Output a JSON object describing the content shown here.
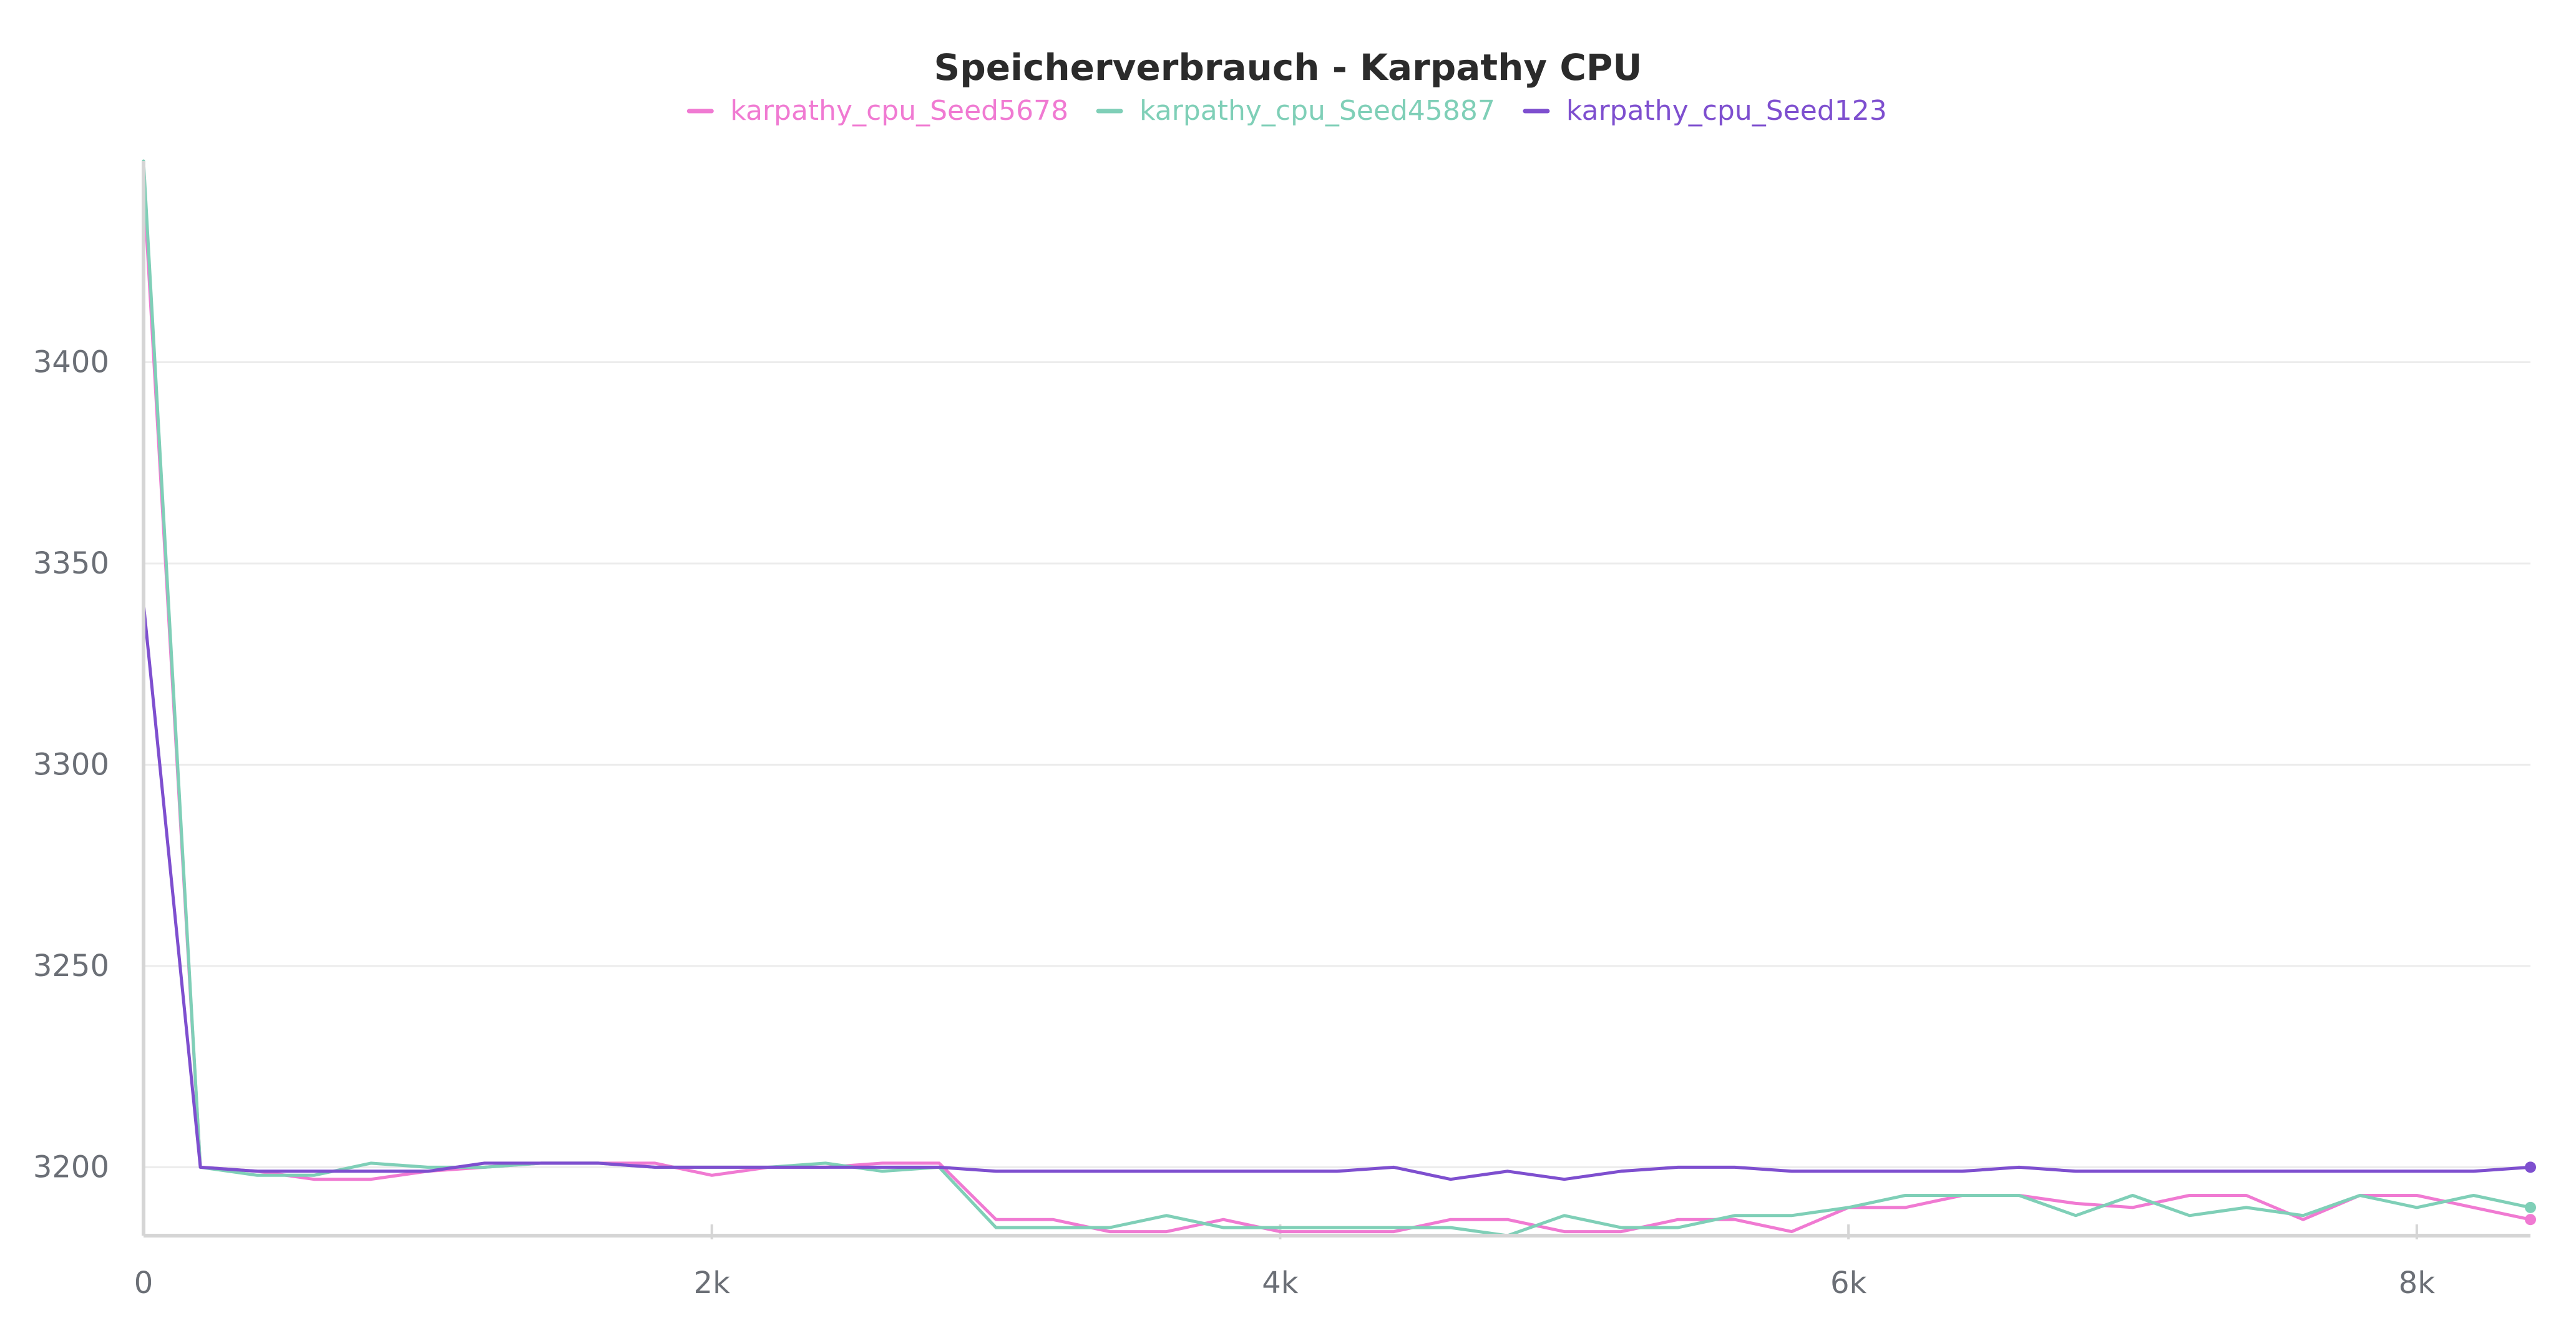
{
  "chart_data": {
    "type": "line",
    "title": "Speicherverbrauch - Karpathy CPU",
    "xlabel": "",
    "ylabel": "",
    "xlim": [
      0,
      8400
    ],
    "ylim": [
      3183,
      3450
    ],
    "xticks": [
      0,
      2000,
      4000,
      6000,
      8000
    ],
    "xtick_labels": [
      "0",
      "2k",
      "4k",
      "6k",
      "8k"
    ],
    "yticks": [
      3200,
      3250,
      3300,
      3350,
      3400
    ],
    "ytick_labels": [
      "3200",
      "3250",
      "3300",
      "3350",
      "3400"
    ],
    "grid": true,
    "legend_position": "top-center",
    "series": [
      {
        "name": "karpathy_cpu_Seed5678",
        "color": "#f07ad2",
        "x": [
          0,
          200,
          400,
          600,
          800,
          1000,
          1200,
          1400,
          1600,
          1800,
          2000,
          2200,
          2400,
          2600,
          2800,
          3000,
          3200,
          3400,
          3600,
          3800,
          4000,
          4200,
          4400,
          4600,
          4800,
          5000,
          5200,
          5400,
          5600,
          5800,
          6000,
          6200,
          6400,
          6600,
          6800,
          7000,
          7200,
          7400,
          7600,
          7800,
          8000,
          8200,
          8400
        ],
        "y": [
          3445,
          3200,
          3199,
          3197,
          3197,
          3199,
          3200,
          3201,
          3201,
          3201,
          3198,
          3200,
          3200,
          3201,
          3201,
          3187,
          3187,
          3184,
          3184,
          3187,
          3184,
          3184,
          3184,
          3187,
          3187,
          3184,
          3184,
          3187,
          3187,
          3184,
          3190,
          3190,
          3193,
          3193,
          3191,
          3190,
          3193,
          3193,
          3187,
          3193,
          3193,
          3190,
          3187
        ]
      },
      {
        "name": "karpathy_cpu_Seed45887",
        "color": "#7fcfb7",
        "x": [
          0,
          200,
          400,
          600,
          800,
          1000,
          1200,
          1400,
          1600,
          1800,
          2000,
          2200,
          2400,
          2600,
          2800,
          3000,
          3200,
          3400,
          3600,
          3800,
          4000,
          4200,
          4400,
          4600,
          4800,
          5000,
          5200,
          5400,
          5600,
          5800,
          6000,
          6200,
          6400,
          6600,
          6800,
          7000,
          7200,
          7400,
          7600,
          7800,
          8000,
          8200,
          8400
        ],
        "y": [
          3450,
          3200,
          3198,
          3198,
          3201,
          3200,
          3200,
          3201,
          3201,
          3200,
          3200,
          3200,
          3201,
          3199,
          3200,
          3185,
          3185,
          3185,
          3188,
          3185,
          3185,
          3185,
          3185,
          3185,
          3183,
          3188,
          3185,
          3185,
          3188,
          3188,
          3190,
          3193,
          3193,
          3193,
          3188,
          3193,
          3188,
          3190,
          3188,
          3193,
          3190,
          3193,
          3190
        ]
      },
      {
        "name": "karpathy_cpu_Seed123",
        "color": "#7e4fcf",
        "x": [
          0,
          200,
          400,
          600,
          800,
          1000,
          1200,
          1400,
          1600,
          1800,
          2000,
          2200,
          2400,
          2600,
          2800,
          3000,
          3200,
          3400,
          3600,
          3800,
          4000,
          4200,
          4400,
          4600,
          4800,
          5000,
          5200,
          5400,
          5600,
          5800,
          6000,
          6200,
          6400,
          6600,
          6800,
          7000,
          7200,
          7400,
          7600,
          7800,
          8000,
          8200,
          8400
        ],
        "y": [
          3340,
          3200,
          3199,
          3199,
          3199,
          3199,
          3201,
          3201,
          3201,
          3200,
          3200,
          3200,
          3200,
          3200,
          3200,
          3199,
          3199,
          3199,
          3199,
          3199,
          3199,
          3199,
          3200,
          3197,
          3199,
          3197,
          3199,
          3200,
          3200,
          3199,
          3199,
          3199,
          3199,
          3200,
          3199,
          3199,
          3199,
          3199,
          3199,
          3199,
          3199,
          3199,
          3200
        ]
      }
    ]
  }
}
